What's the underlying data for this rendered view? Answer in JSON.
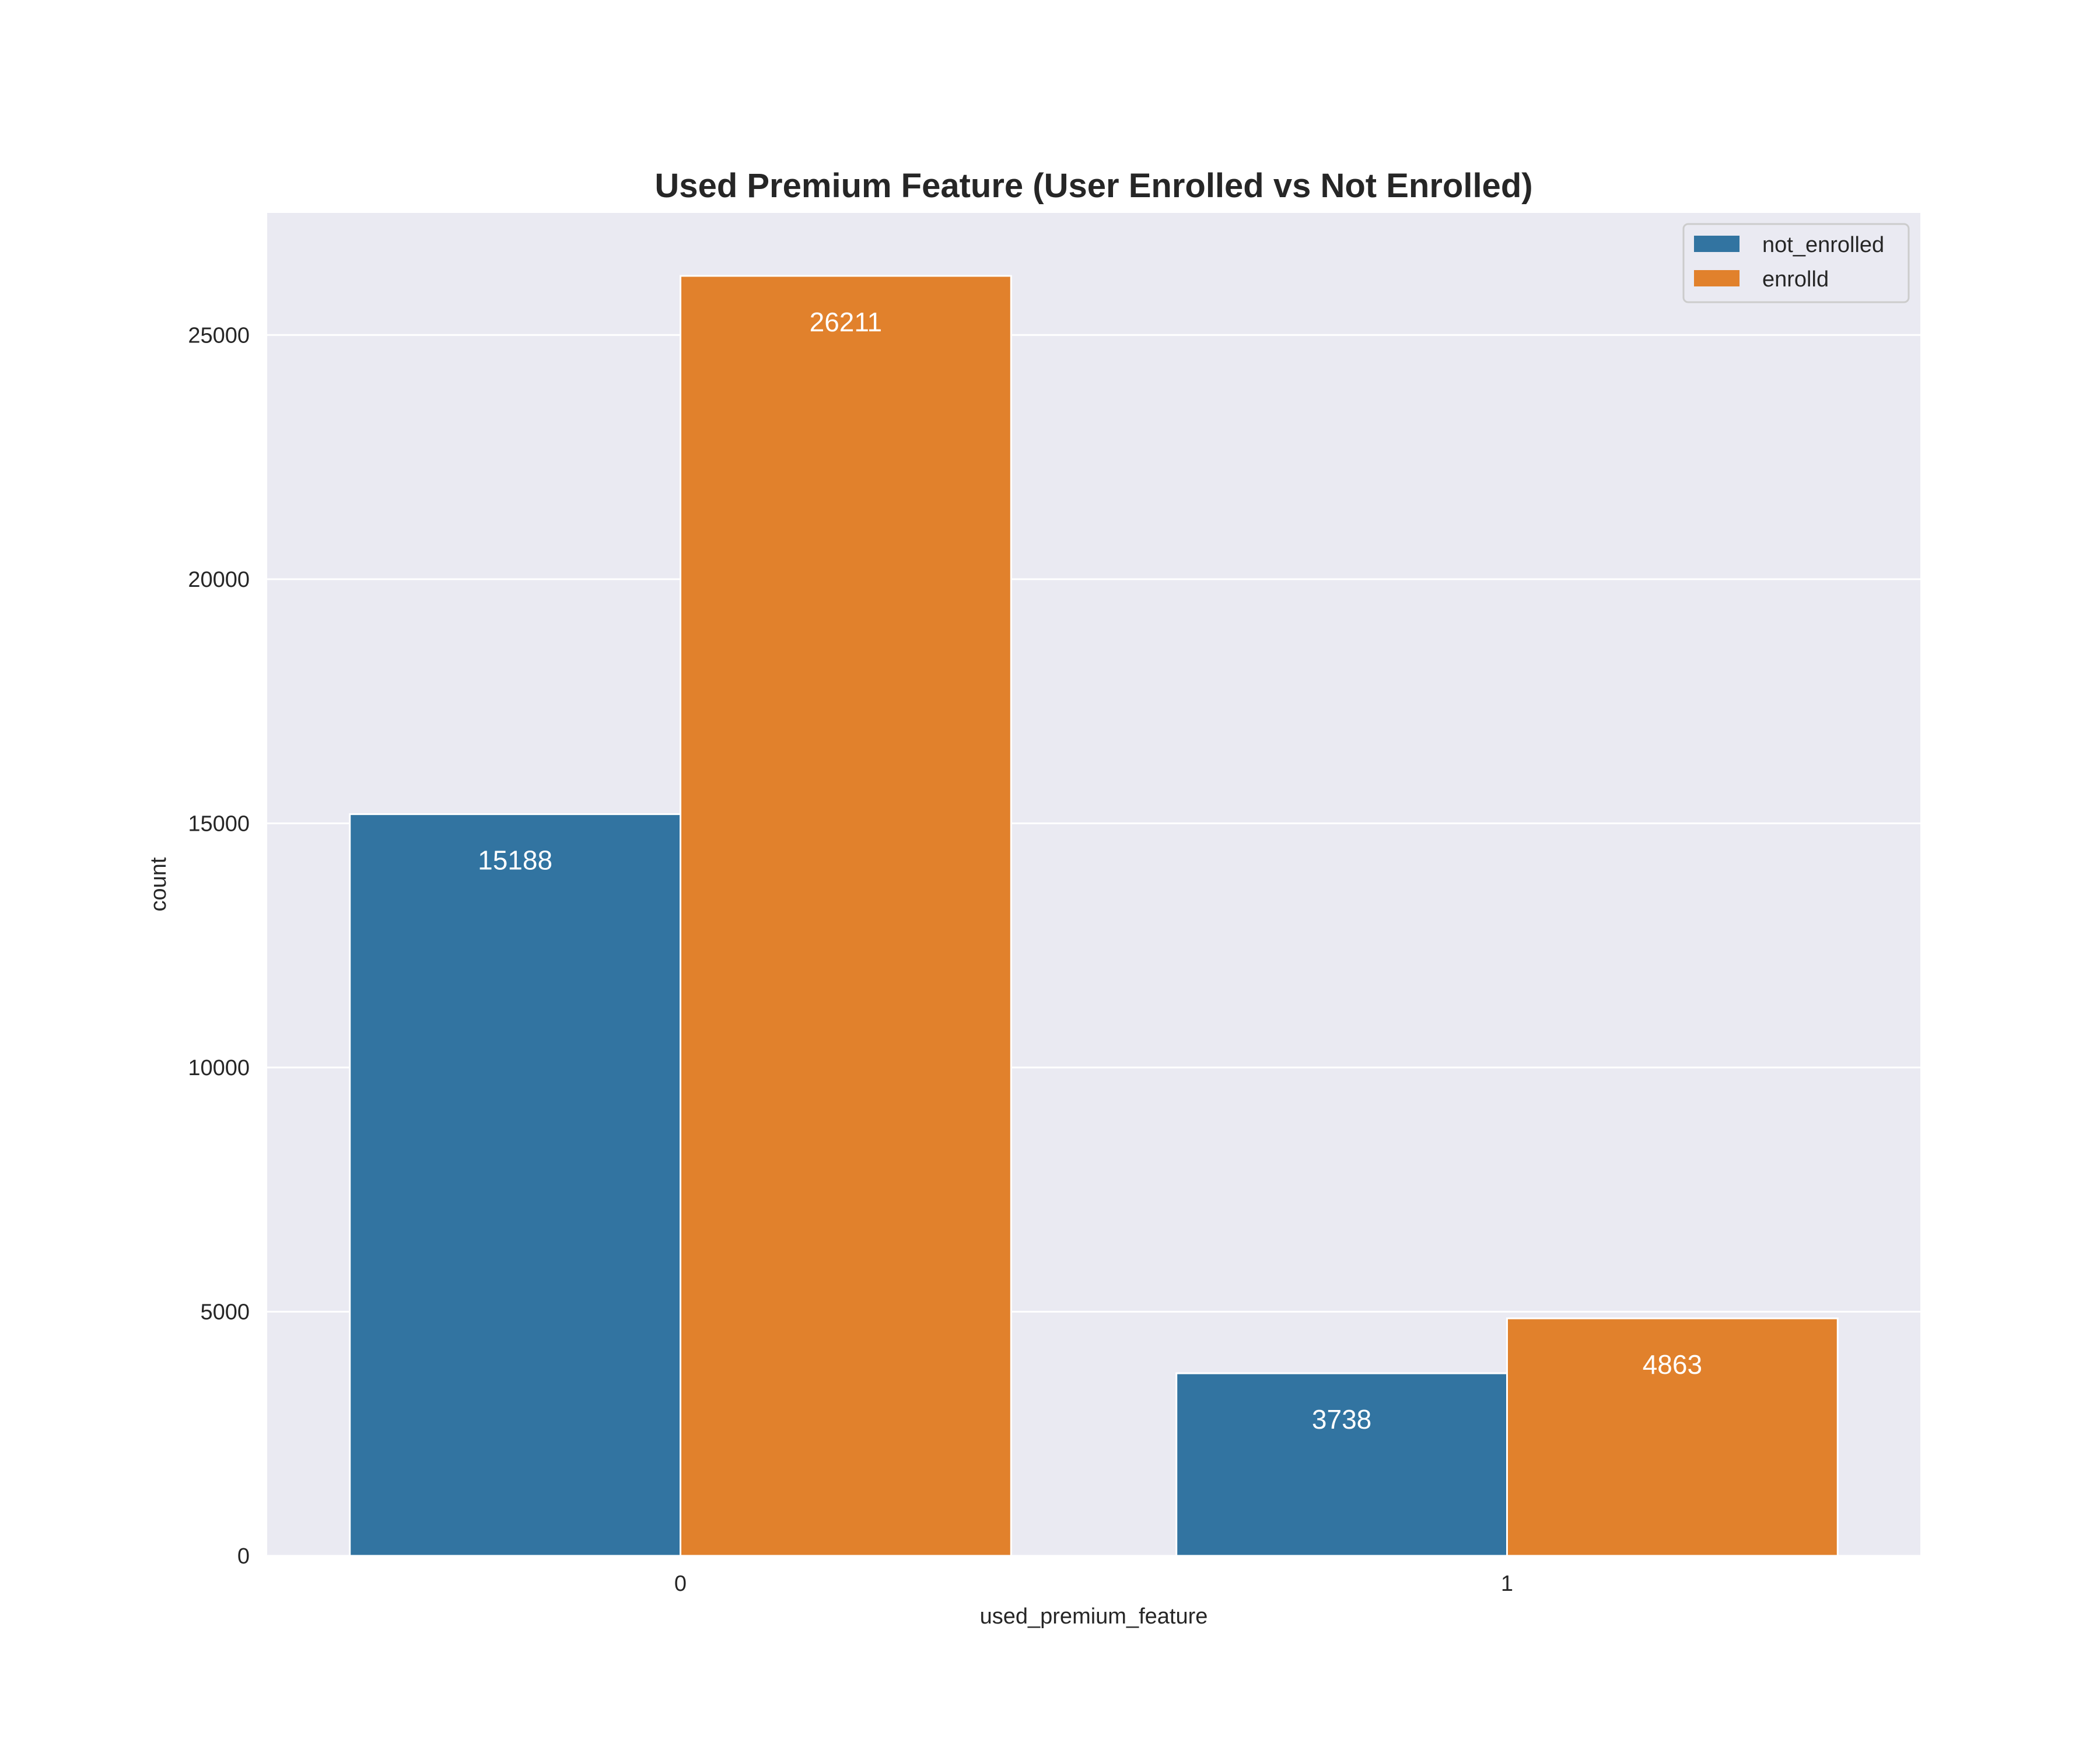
{
  "chart_data": {
    "type": "bar",
    "title": "Used Premium Feature (User Enrolled vs Not Enrolled)",
    "xlabel": "used_premium_feature",
    "ylabel": "count",
    "categories": [
      "0",
      "1"
    ],
    "series": [
      {
        "name": "not_enrolled",
        "values": [
          15188,
          3738
        ],
        "color": "#3274a1"
      },
      {
        "name": "enrolld",
        "values": [
          26211,
          4863
        ],
        "color": "#e1812c"
      }
    ],
    "data_labels": [
      [
        "15188",
        "3738"
      ],
      [
        "26211",
        "4863"
      ]
    ],
    "ylim": [
      0,
      27500
    ],
    "yticks": [
      0,
      5000,
      10000,
      15000,
      20000,
      25000
    ],
    "ytick_labels": [
      "0",
      "5000",
      "10000",
      "15000",
      "20000",
      "25000"
    ],
    "grid": true,
    "legend_position": "top-right",
    "background": "#eaeaf2",
    "gridline_color": "#ffffff"
  }
}
